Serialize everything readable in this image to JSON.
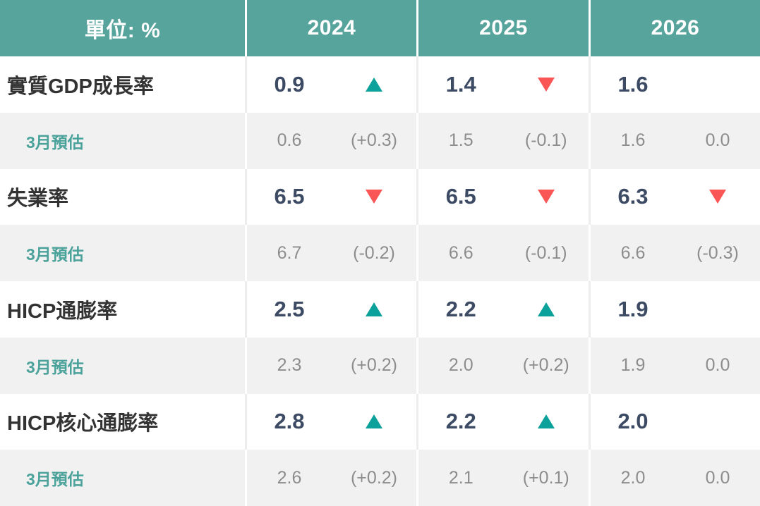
{
  "table": {
    "unit_label": "單位: %",
    "years": [
      "2024",
      "2025",
      "2026"
    ],
    "colors": {
      "header_bg": "#57a49c",
      "up_triangle": "#0ca19a",
      "down_triangle": "#fb5656",
      "main_value_text": "#3c4b63",
      "main_label_text": "#333333",
      "sub_row_bg": "#f1f1f1",
      "sub_text": "#8d8d8d",
      "sub_label_text": "#4ba29b"
    },
    "rows": [
      {
        "type": "main",
        "label": "實質GDP成長率",
        "cells": [
          {
            "value": "0.9",
            "arrow": "up"
          },
          {
            "value": "1.4",
            "arrow": "down"
          },
          {
            "value": "1.6",
            "arrow": "none"
          }
        ]
      },
      {
        "type": "sub",
        "label": "3月預估",
        "cells": [
          {
            "value": "0.6",
            "change": "(+0.3)"
          },
          {
            "value": "1.5",
            "change": "(-0.1)"
          },
          {
            "value": "1.6",
            "change": "0.0"
          }
        ]
      },
      {
        "type": "main",
        "label": "失業率",
        "cells": [
          {
            "value": "6.5",
            "arrow": "down"
          },
          {
            "value": "6.5",
            "arrow": "down"
          },
          {
            "value": "6.3",
            "arrow": "down"
          }
        ]
      },
      {
        "type": "sub",
        "label": "3月預估",
        "cells": [
          {
            "value": "6.7",
            "change": "(-0.2)"
          },
          {
            "value": "6.6",
            "change": "(-0.1)"
          },
          {
            "value": "6.6",
            "change": "(-0.3)"
          }
        ]
      },
      {
        "type": "main",
        "label": "HICP通膨率",
        "cells": [
          {
            "value": "2.5",
            "arrow": "up"
          },
          {
            "value": "2.2",
            "arrow": "up"
          },
          {
            "value": "1.9",
            "arrow": "none"
          }
        ]
      },
      {
        "type": "sub",
        "label": "3月預估",
        "cells": [
          {
            "value": "2.3",
            "change": "(+0.2)"
          },
          {
            "value": "2.0",
            "change": "(+0.2)"
          },
          {
            "value": "1.9",
            "change": "0.0"
          }
        ]
      },
      {
        "type": "main",
        "label": "HICP核心通膨率",
        "cells": [
          {
            "value": "2.8",
            "arrow": "up"
          },
          {
            "value": "2.2",
            "arrow": "up"
          },
          {
            "value": "2.0",
            "arrow": "none"
          }
        ]
      },
      {
        "type": "sub",
        "label": "3月預估",
        "cells": [
          {
            "value": "2.6",
            "change": "(+0.2)"
          },
          {
            "value": "2.1",
            "change": "(+0.1)"
          },
          {
            "value": "2.0",
            "change": "0.0"
          }
        ]
      }
    ]
  }
}
